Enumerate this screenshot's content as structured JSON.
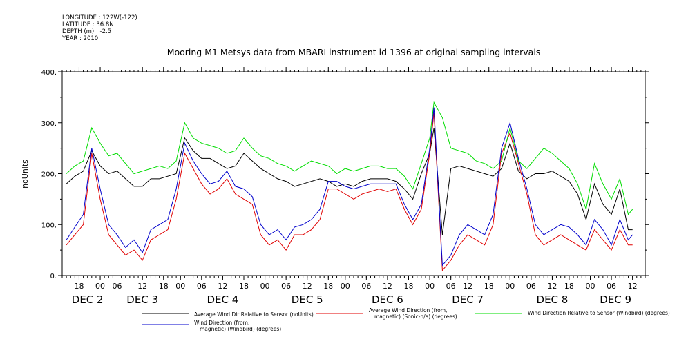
{
  "metadata": {
    "longitude": "LONGITUDE : 122W(-122)",
    "latitude": "LATITUDE : 36.8N",
    "depth": "DEPTH (m) : -2.5",
    "year": "YEAR : 2010"
  },
  "chart_data": {
    "type": "line",
    "title": "Mooring M1 Metsys data from MBARI instrument id 1396 at original sampling intervals",
    "ylabel": "noUnits",
    "xlabel": "",
    "ylim": [
      0,
      400
    ],
    "yticks": [
      0,
      100,
      200,
      300,
      400
    ],
    "ytick_labels": [
      "0.",
      "100.",
      "200.",
      "300.",
      "400."
    ],
    "xlim": [
      -9,
      129
    ],
    "xunit": "hours from 2010-12-02 00:00",
    "hour_ticks": [
      {
        "x": -5,
        "label": "18"
      },
      {
        "x": 0,
        "label": "00"
      },
      {
        "x": 4,
        "label": "06"
      },
      {
        "x": 10,
        "label": "12"
      },
      {
        "x": 15,
        "label": "18"
      },
      {
        "x": 19,
        "label": "00"
      },
      {
        "x": 24,
        "label": "06"
      },
      {
        "x": 29,
        "label": "12"
      },
      {
        "x": 34,
        "label": "18"
      },
      {
        "x": 39,
        "label": "00"
      },
      {
        "x": 44,
        "label": "06"
      },
      {
        "x": 49,
        "label": "12"
      },
      {
        "x": 54,
        "label": "18"
      },
      {
        "x": 58,
        "label": "00"
      },
      {
        "x": 63,
        "label": "06"
      },
      {
        "x": 68,
        "label": "12"
      },
      {
        "x": 73,
        "label": "18"
      },
      {
        "x": 78,
        "label": "00"
      },
      {
        "x": 83,
        "label": "06"
      },
      {
        "x": 87,
        "label": "12"
      },
      {
        "x": 92,
        "label": "18"
      },
      {
        "x": 97,
        "label": "00"
      },
      {
        "x": 102,
        "label": "06"
      },
      {
        "x": 107,
        "label": "12"
      },
      {
        "x": 111,
        "label": "18"
      },
      {
        "x": 116,
        "label": "00"
      },
      {
        "x": 121,
        "label": "06"
      },
      {
        "x": 126,
        "label": "12"
      }
    ],
    "day_labels": [
      {
        "x": -3,
        "label": "DEC  2"
      },
      {
        "x": 10,
        "label": "DEC  3"
      },
      {
        "x": 29,
        "label": "DEC  4"
      },
      {
        "x": 49,
        "label": "DEC  5"
      },
      {
        "x": 68,
        "label": "DEC  6"
      },
      {
        "x": 87,
        "label": "DEC  7"
      },
      {
        "x": 107,
        "label": "DEC  8"
      },
      {
        "x": 122,
        "label": "DEC  9"
      }
    ],
    "series": [
      {
        "name": "Average Wind Dir Relative to Sensor (noUnits)",
        "color": "#000000",
        "x": [
          -8,
          -6,
          -4,
          -2,
          0,
          2,
          4,
          6,
          8,
          10,
          12,
          14,
          16,
          18,
          20,
          22,
          24,
          26,
          28,
          30,
          32,
          34,
          36,
          38,
          40,
          42,
          44,
          46,
          48,
          50,
          52,
          54,
          56,
          58,
          60,
          62,
          64,
          66,
          68,
          70,
          72,
          74,
          76,
          78,
          79,
          81,
          83,
          85,
          87,
          89,
          91,
          93,
          95,
          97,
          99,
          101,
          103,
          105,
          107,
          109,
          111,
          113,
          115,
          117,
          119,
          121,
          123,
          125,
          126
        ],
        "y": [
          180,
          195,
          205,
          245,
          215,
          200,
          205,
          190,
          175,
          175,
          190,
          190,
          195,
          200,
          270,
          245,
          230,
          230,
          220,
          210,
          215,
          240,
          225,
          210,
          200,
          190,
          185,
          175,
          180,
          185,
          190,
          185,
          175,
          180,
          175,
          185,
          190,
          190,
          190,
          185,
          170,
          150,
          200,
          240,
          290,
          80,
          210,
          215,
          210,
          205,
          200,
          195,
          210,
          260,
          205,
          190,
          200,
          200,
          205,
          195,
          185,
          160,
          110,
          180,
          140,
          120,
          170,
          90,
          90
        ]
      },
      {
        "name": "Average Wind Direction (from, magnetic) (Sonic-n/a) (degrees)",
        "color": "#e00000",
        "x": [
          -8,
          -6,
          -4,
          -2,
          0,
          2,
          4,
          6,
          8,
          10,
          12,
          14,
          16,
          18,
          20,
          22,
          24,
          26,
          28,
          30,
          32,
          34,
          36,
          38,
          40,
          42,
          44,
          46,
          48,
          50,
          52,
          54,
          56,
          58,
          60,
          62,
          64,
          66,
          68,
          70,
          72,
          74,
          76,
          78,
          79,
          81,
          83,
          85,
          87,
          89,
          91,
          93,
          95,
          97,
          99,
          101,
          103,
          105,
          107,
          109,
          111,
          113,
          115,
          117,
          119,
          121,
          123,
          125,
          126
        ],
        "y": [
          60,
          80,
          100,
          240,
          150,
          80,
          60,
          40,
          50,
          30,
          70,
          80,
          90,
          150,
          240,
          210,
          180,
          160,
          170,
          190,
          160,
          150,
          140,
          80,
          60,
          70,
          50,
          80,
          80,
          90,
          110,
          170,
          170,
          160,
          150,
          160,
          165,
          170,
          165,
          170,
          130,
          100,
          130,
          240,
          320,
          10,
          30,
          60,
          80,
          70,
          60,
          100,
          240,
          280,
          220,
          160,
          80,
          60,
          70,
          80,
          70,
          60,
          50,
          90,
          70,
          50,
          90,
          60,
          60
        ]
      },
      {
        "name": "Wind Direction Relative to Sensor (Windbird) (degrees)",
        "color": "#00dd00",
        "x": [
          -8,
          -6,
          -4,
          -2,
          0,
          2,
          4,
          6,
          8,
          10,
          12,
          14,
          16,
          18,
          20,
          22,
          24,
          26,
          28,
          30,
          32,
          34,
          36,
          38,
          40,
          42,
          44,
          46,
          48,
          50,
          52,
          54,
          56,
          58,
          60,
          62,
          64,
          66,
          68,
          70,
          72,
          74,
          76,
          78,
          79,
          81,
          83,
          85,
          87,
          89,
          91,
          93,
          95,
          97,
          99,
          101,
          103,
          105,
          107,
          109,
          111,
          113,
          115,
          117,
          119,
          121,
          123,
          125,
          126
        ],
        "y": [
          200,
          215,
          225,
          290,
          260,
          235,
          240,
          220,
          200,
          205,
          210,
          215,
          210,
          225,
          300,
          270,
          260,
          255,
          250,
          240,
          245,
          270,
          250,
          235,
          230,
          220,
          215,
          205,
          215,
          225,
          220,
          215,
          200,
          210,
          205,
          210,
          215,
          215,
          210,
          210,
          195,
          170,
          220,
          270,
          340,
          310,
          250,
          245,
          240,
          225,
          220,
          210,
          225,
          290,
          225,
          210,
          230,
          250,
          240,
          225,
          210,
          180,
          130,
          220,
          180,
          150,
          190,
          120,
          130
        ]
      },
      {
        "name": "Wind Direction (from, magnetic) (Windbird) (degrees)",
        "color": "#0000cc",
        "x": [
          -8,
          -6,
          -4,
          -2,
          0,
          2,
          4,
          6,
          8,
          10,
          12,
          14,
          16,
          18,
          20,
          22,
          24,
          26,
          28,
          30,
          32,
          34,
          36,
          38,
          40,
          42,
          44,
          46,
          48,
          50,
          52,
          54,
          56,
          58,
          60,
          62,
          64,
          66,
          68,
          70,
          72,
          74,
          76,
          78,
          79,
          81,
          83,
          85,
          87,
          89,
          91,
          93,
          95,
          97,
          99,
          101,
          103,
          105,
          107,
          109,
          111,
          113,
          115,
          117,
          119,
          121,
          123,
          125,
          126
        ],
        "y": [
          70,
          95,
          120,
          250,
          170,
          100,
          80,
          55,
          70,
          45,
          90,
          100,
          110,
          170,
          260,
          225,
          200,
          180,
          185,
          205,
          175,
          170,
          155,
          100,
          80,
          90,
          70,
          95,
          100,
          110,
          130,
          185,
          185,
          175,
          170,
          175,
          180,
          180,
          180,
          180,
          140,
          110,
          140,
          250,
          330,
          20,
          40,
          80,
          100,
          90,
          80,
          120,
          250,
          300,
          230,
          170,
          100,
          80,
          90,
          100,
          95,
          80,
          60,
          110,
          90,
          60,
          110,
          70,
          80
        ]
      }
    ],
    "legend": [
      {
        "text": "Average Wind Dir Relative to Sensor (noUnits)",
        "color": "#000000"
      },
      {
        "text": "Average Wind Direction (from, magnetic) (Sonic-n/a) (degrees)",
        "color": "#e00000"
      },
      {
        "text": "Wind Direction Relative to Sensor (Windbird) (degrees)",
        "color": "#00dd00"
      },
      {
        "text": "Wind Direction (from, magnetic) (Windbird) (degrees)",
        "color": "#0000cc"
      }
    ],
    "legend_placement": "bottom"
  }
}
